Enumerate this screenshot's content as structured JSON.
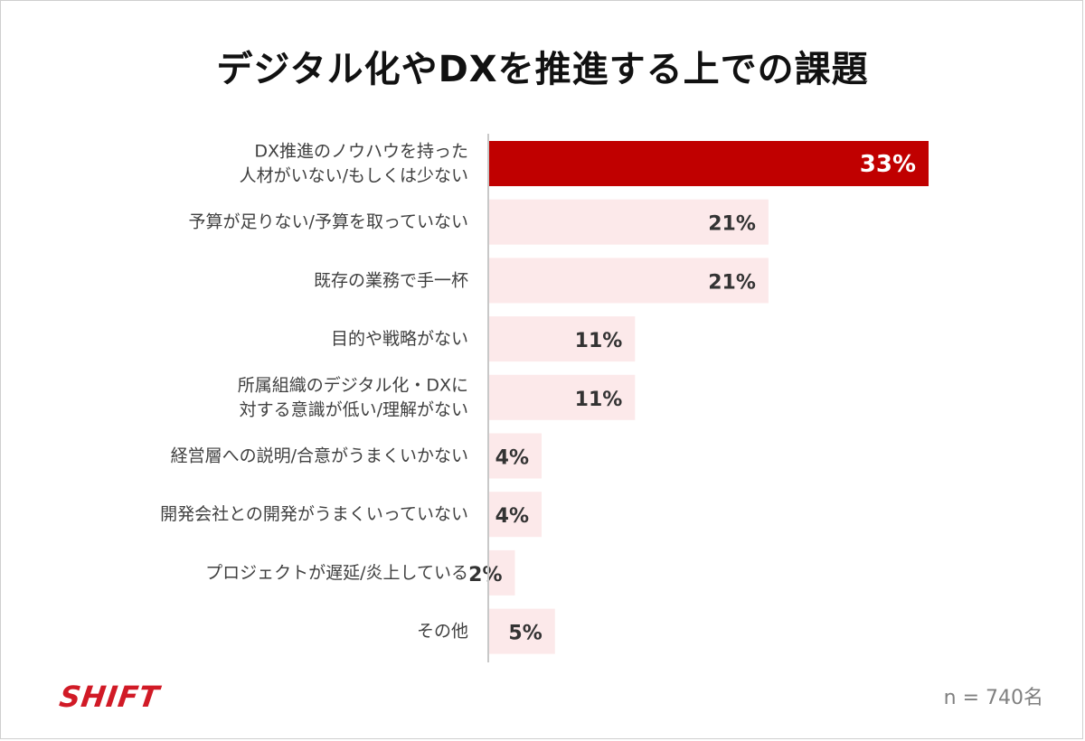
{
  "colors": {
    "highlight_bar": "#c00000",
    "bar": "#fce9ea",
    "axis_line": "#c8c8c8",
    "label_text": "#404040",
    "highlight_value_text": "#ffffff",
    "value_text": "#333333"
  },
  "brand": {
    "logo_text": "SHIFT"
  },
  "footer": {
    "sample_size": "n = 740名"
  },
  "chart_data": {
    "type": "bar",
    "orientation": "horizontal",
    "title": "デジタル化やDXを推進する上での課題",
    "xlim": [
      0,
      33
    ],
    "grid": false,
    "legend": "none",
    "categories": [
      [
        "DX推進のノウハウを持った",
        "人材がいない/もしくは少ない"
      ],
      [
        "予算が足りない/予算を取っていない"
      ],
      [
        "既存の業務で手一杯"
      ],
      [
        "目的や戦略がない"
      ],
      [
        "所属組織のデジタル化・DXに",
        "対する意識が低い/理解がない"
      ],
      [
        "経営層への説明/合意がうまくいかない"
      ],
      [
        "開発会社との開発がうまくいっていない"
      ],
      [
        "プロジェクトが遅延/炎上している"
      ],
      [
        "その他"
      ]
    ],
    "values": [
      33,
      21,
      21,
      11,
      11,
      4,
      4,
      2,
      5
    ],
    "value_labels": [
      "33%",
      "21%",
      "21%",
      "11%",
      "11%",
      "4%",
      "4%",
      "2%",
      "5%"
    ],
    "highlight_index": 0
  }
}
